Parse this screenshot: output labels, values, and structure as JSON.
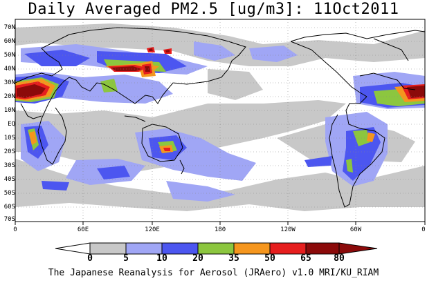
{
  "title": "Daily Averaged PM2.5 [ug/m3]: 11Oct2011",
  "footer": "The Japanese Reanalysis for Aerosol (JRAero) v1.0 MRI/KU_RIAM",
  "lat_labels": [
    "70N",
    "60N",
    "50N",
    "40N",
    "30N",
    "20N",
    "10N",
    "EQ",
    "10S",
    "20S",
    "30S",
    "40S",
    "50S",
    "60S",
    "70S"
  ],
  "lon_labels": [
    "0",
    "60E",
    "120E",
    "180",
    "120W",
    "60W",
    "0"
  ],
  "colorbar": {
    "labels": [
      "0",
      "5",
      "10",
      "20",
      "35",
      "50",
      "65",
      "80"
    ],
    "colors": [
      "#ffffff",
      "#c8c8c8",
      "#a0a6f5",
      "#4c56f0",
      "#8cc63f",
      "#f5961e",
      "#e61e1e",
      "#8b0a0a"
    ]
  },
  "colors": {
    "background": "#ffffff",
    "ocean": "#ffffff",
    "coast": "#000000"
  }
}
